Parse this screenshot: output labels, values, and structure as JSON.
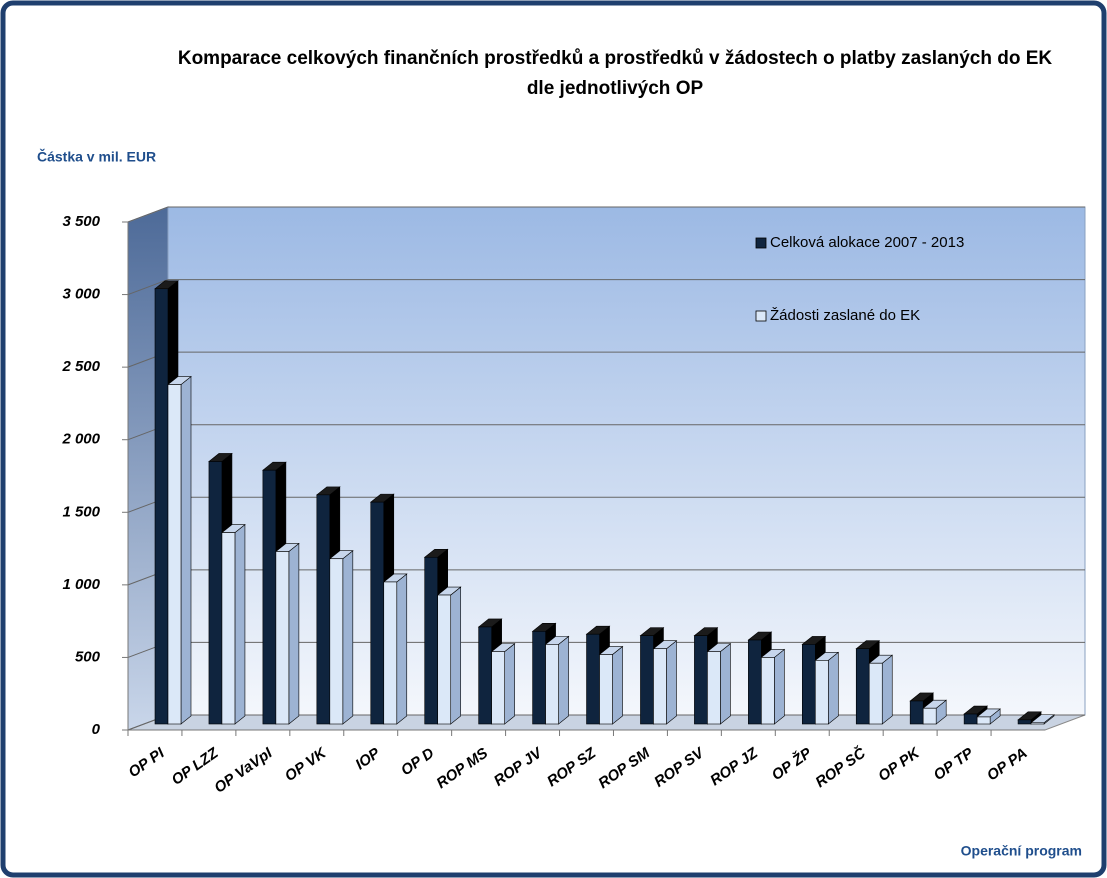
{
  "chart_data": {
    "type": "bar3d",
    "title": "Komparace celkových finančních prostředků a prostředků v žádostech o platby zaslaných do EK dle jednotlivých OP",
    "ylabel": "Částka v mil. EUR",
    "xlabel": "Operační program",
    "categories": [
      "OP PI",
      "OP LZZ",
      "OP VaVpI",
      "OP VK",
      "IOP",
      "OP D",
      "ROP MS",
      "ROP JV",
      "ROP SZ",
      "ROP SM",
      "ROP SV",
      "ROP JZ",
      "OP ŽP",
      "ROP SČ",
      "OP PK",
      "OP TP",
      "OP PA"
    ],
    "series": [
      {
        "name": "Celková alokace 2007 - 2013",
        "color": "#0f243e",
        "values": [
          3040,
          1850,
          1790,
          1620,
          1570,
          1190,
          710,
          680,
          660,
          650,
          650,
          620,
          590,
          560,
          200,
          110,
          70
        ]
      },
      {
        "name": "Žádosti zaslané do EK",
        "color": "#dbe8f8",
        "values": [
          2380,
          1360,
          1230,
          1180,
          1020,
          930,
          540,
          590,
          520,
          560,
          540,
          500,
          480,
          460,
          150,
          90,
          50
        ]
      }
    ],
    "ylim": [
      0,
      3500
    ],
    "yticks": [
      0,
      500,
      {
        "value": 1000,
        "label": "1 000"
      },
      {
        "value": 1500,
        "label": "1 500"
      },
      {
        "value": 2000,
        "label": "2 000"
      },
      {
        "value": 2500,
        "label": "2 500"
      },
      {
        "value": 3000,
        "label": "3 000"
      },
      {
        "value": 3500,
        "label": "3 500"
      }
    ],
    "grid": true,
    "legend": "top-right"
  }
}
